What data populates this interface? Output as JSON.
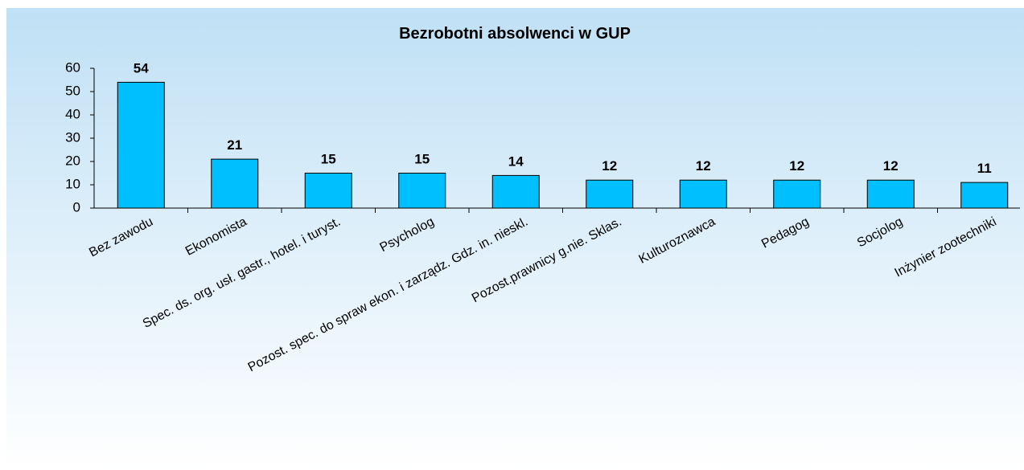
{
  "chart_data": {
    "type": "bar",
    "title": "Bezrobotni absolwenci w GUP",
    "categories": [
      "Bez zawodu",
      "Ekonomista",
      "Spec. ds. org. usł. gastr., hotel. i turyst.",
      "Psycholog",
      "Pozost. spec. do spraw ekon. i zarządz. Gdz. in. nieskl.",
      "Pozost.prawnicy g.nie. Sklas.",
      "Kulturoznawca",
      "Pedagog",
      "Socjolog",
      "Inżynier zootechniki"
    ],
    "values": [
      54,
      21,
      15,
      15,
      14,
      12,
      12,
      12,
      12,
      11
    ],
    "color": "#00bfff",
    "ylim": [
      0,
      60
    ],
    "yticks": [
      0,
      10,
      20,
      30,
      40,
      50,
      60
    ],
    "grid": false
  }
}
